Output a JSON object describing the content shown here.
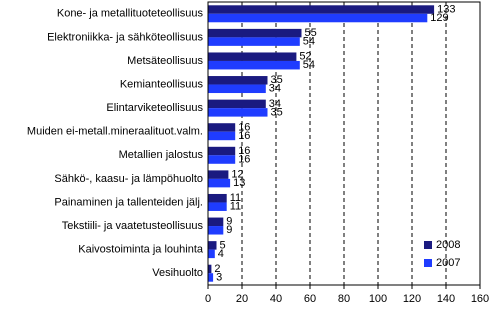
{
  "chart_data": {
    "type": "hbar",
    "categories": [
      "Kone- ja metallituoteteollisuus",
      "Elektroniikka- ja sähköteollisuus",
      "Metsäteollisuus",
      "Kemianteollisuus",
      "Elintarviketeollisuus",
      "Muiden ei-metall.mineraalituot.valm.",
      "Metallien jalostus",
      "Sähkö-, kaasu- ja lämpöhuolto",
      "Painaminen ja tallenteiden jälj.",
      "Tekstiili- ja vaatetusteollisuus",
      "Kaivostoiminta ja louhinta",
      "Vesihuolto"
    ],
    "series": [
      {
        "name": "2008",
        "color": "#1a1a80",
        "values": [
          133,
          55,
          52,
          35,
          34,
          16,
          16,
          12,
          11,
          9,
          5,
          2
        ]
      },
      {
        "name": "2007",
        "color": "#1f3cff",
        "values": [
          129,
          54,
          54,
          34,
          35,
          16,
          16,
          13,
          11,
          9,
          4,
          3
        ]
      }
    ],
    "xlim": [
      0,
      160
    ],
    "xticks": [
      0,
      20,
      40,
      60,
      80,
      100,
      120,
      140,
      160
    ],
    "grid": true,
    "legend": "lower right"
  }
}
